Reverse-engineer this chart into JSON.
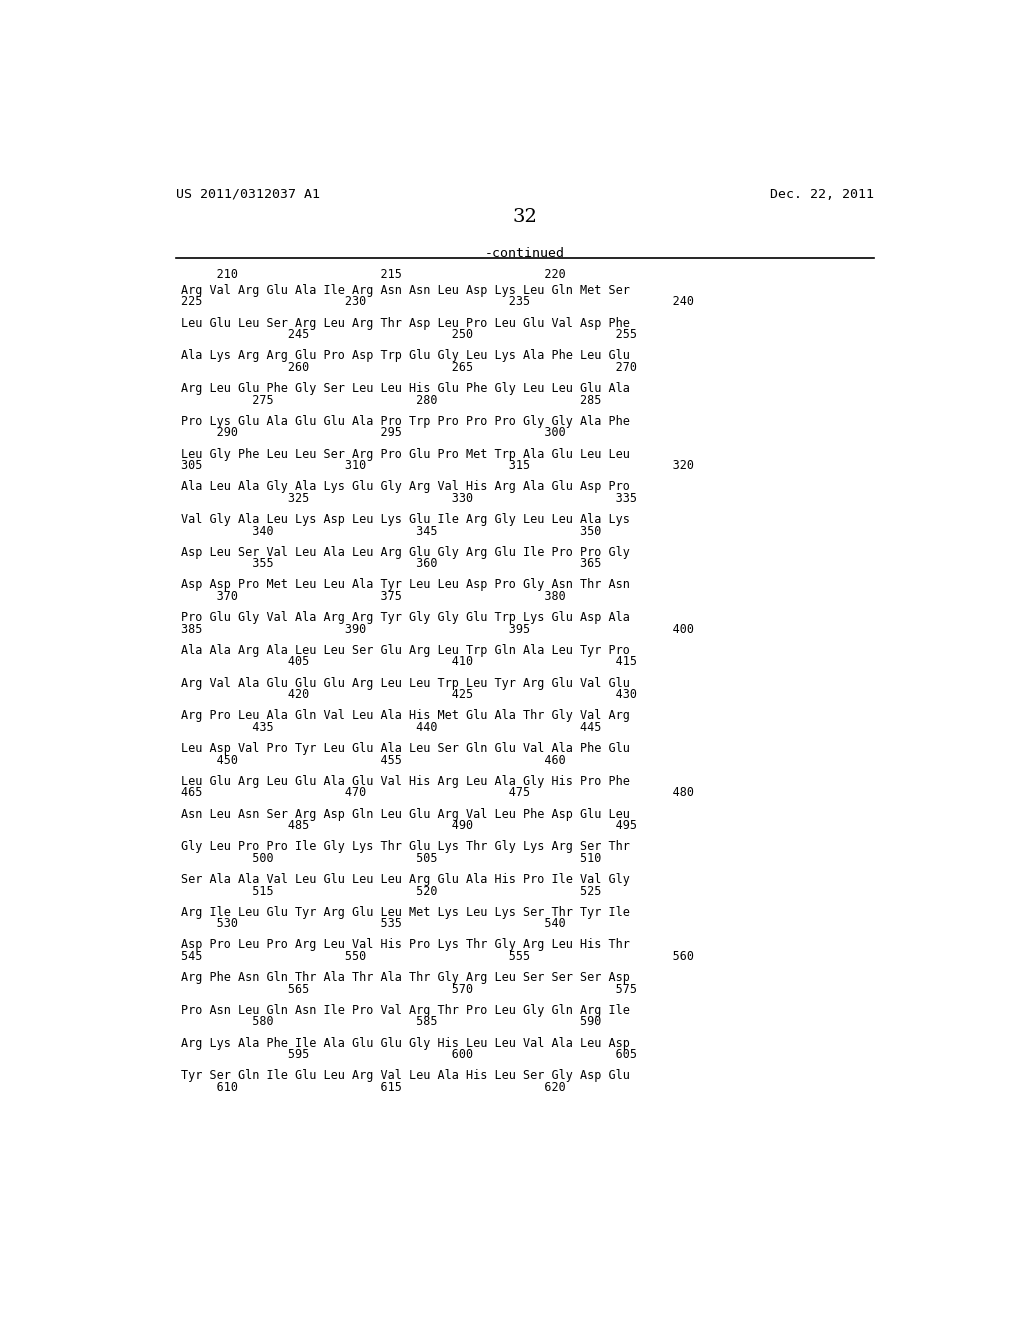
{
  "header_left": "US 2011/0312037 A1",
  "header_right": "Dec. 22, 2011",
  "page_number": "32",
  "continued_label": "-continued",
  "background_color": "#ffffff",
  "text_color": "#000000",
  "groups": [
    {
      "seq": "Arg Val Arg Glu Ala Ile Arg Asn Asn Leu Asp Lys Leu Gln Met Ser",
      "num": "225                    230                    235                    240"
    },
    {
      "seq": "Leu Glu Leu Ser Arg Leu Arg Thr Asp Leu Pro Leu Glu Val Asp Phe",
      "num": "               245                    250                    255"
    },
    {
      "seq": "Ala Lys Arg Arg Glu Pro Asp Trp Glu Gly Leu Lys Ala Phe Leu Glu",
      "num": "               260                    265                    270"
    },
    {
      "seq": "Arg Leu Glu Phe Gly Ser Leu Leu His Glu Phe Gly Leu Leu Glu Ala",
      "num": "          275                    280                    285"
    },
    {
      "seq": "Pro Lys Glu Ala Glu Glu Ala Pro Trp Pro Pro Pro Gly Gly Ala Phe",
      "num": "     290                    295                    300"
    },
    {
      "seq": "Leu Gly Phe Leu Leu Ser Arg Pro Glu Pro Met Trp Ala Glu Leu Leu",
      "num": "305                    310                    315                    320"
    },
    {
      "seq": "Ala Leu Ala Gly Ala Lys Glu Gly Arg Val His Arg Ala Glu Asp Pro",
      "num": "               325                    330                    335"
    },
    {
      "seq": "Val Gly Ala Leu Lys Asp Leu Lys Glu Ile Arg Gly Leu Leu Ala Lys",
      "num": "          340                    345                    350"
    },
    {
      "seq": "Asp Leu Ser Val Leu Ala Leu Arg Glu Gly Arg Glu Ile Pro Pro Gly",
      "num": "          355                    360                    365"
    },
    {
      "seq": "Asp Asp Pro Met Leu Leu Ala Tyr Leu Leu Asp Pro Gly Asn Thr Asn",
      "num": "     370                    375                    380"
    },
    {
      "seq": "Pro Glu Gly Val Ala Arg Arg Tyr Gly Gly Glu Trp Lys Glu Asp Ala",
      "num": "385                    390                    395                    400"
    },
    {
      "seq": "Ala Ala Arg Ala Leu Leu Ser Glu Arg Leu Trp Gln Ala Leu Tyr Pro",
      "num": "               405                    410                    415"
    },
    {
      "seq": "Arg Val Ala Glu Glu Glu Arg Leu Leu Trp Leu Tyr Arg Glu Val Glu",
      "num": "               420                    425                    430"
    },
    {
      "seq": "Arg Pro Leu Ala Gln Val Leu Ala His Met Glu Ala Thr Gly Val Arg",
      "num": "          435                    440                    445"
    },
    {
      "seq": "Leu Asp Val Pro Tyr Leu Glu Ala Leu Ser Gln Glu Val Ala Phe Glu",
      "num": "     450                    455                    460"
    },
    {
      "seq": "Leu Glu Arg Leu Glu Ala Glu Val His Arg Leu Ala Gly His Pro Phe",
      "num": "465                    470                    475                    480"
    },
    {
      "seq": "Asn Leu Asn Ser Arg Asp Gln Leu Glu Arg Val Leu Phe Asp Glu Leu",
      "num": "               485                    490                    495"
    },
    {
      "seq": "Gly Leu Pro Pro Ile Gly Lys Thr Glu Lys Thr Gly Lys Arg Ser Thr",
      "num": "          500                    505                    510"
    },
    {
      "seq": "Ser Ala Ala Val Leu Glu Leu Leu Arg Glu Ala His Pro Ile Val Gly",
      "num": "          515                    520                    525"
    },
    {
      "seq": "Arg Ile Leu Glu Tyr Arg Glu Leu Met Lys Leu Lys Ser Thr Tyr Ile",
      "num": "     530                    535                    540"
    },
    {
      "seq": "Asp Pro Leu Pro Arg Leu Val His Pro Lys Thr Gly Arg Leu His Thr",
      "num": "545                    550                    555                    560"
    },
    {
      "seq": "Arg Phe Asn Gln Thr Ala Thr Ala Thr Gly Arg Leu Ser Ser Ser Asp",
      "num": "               565                    570                    575"
    },
    {
      "seq": "Pro Asn Leu Gln Asn Ile Pro Val Arg Thr Pro Leu Gly Gln Arg Ile",
      "num": "          580                    585                    590"
    },
    {
      "seq": "Arg Lys Ala Phe Ile Ala Glu Glu Gly His Leu Leu Val Ala Leu Asp",
      "num": "               595                    600                    605"
    },
    {
      "seq": "Tyr Ser Gln Ile Glu Leu Arg Val Leu Ala His Leu Ser Gly Asp Glu",
      "num": "     610                    615                    620"
    }
  ],
  "first_num_line": "     210                    215                    220"
}
